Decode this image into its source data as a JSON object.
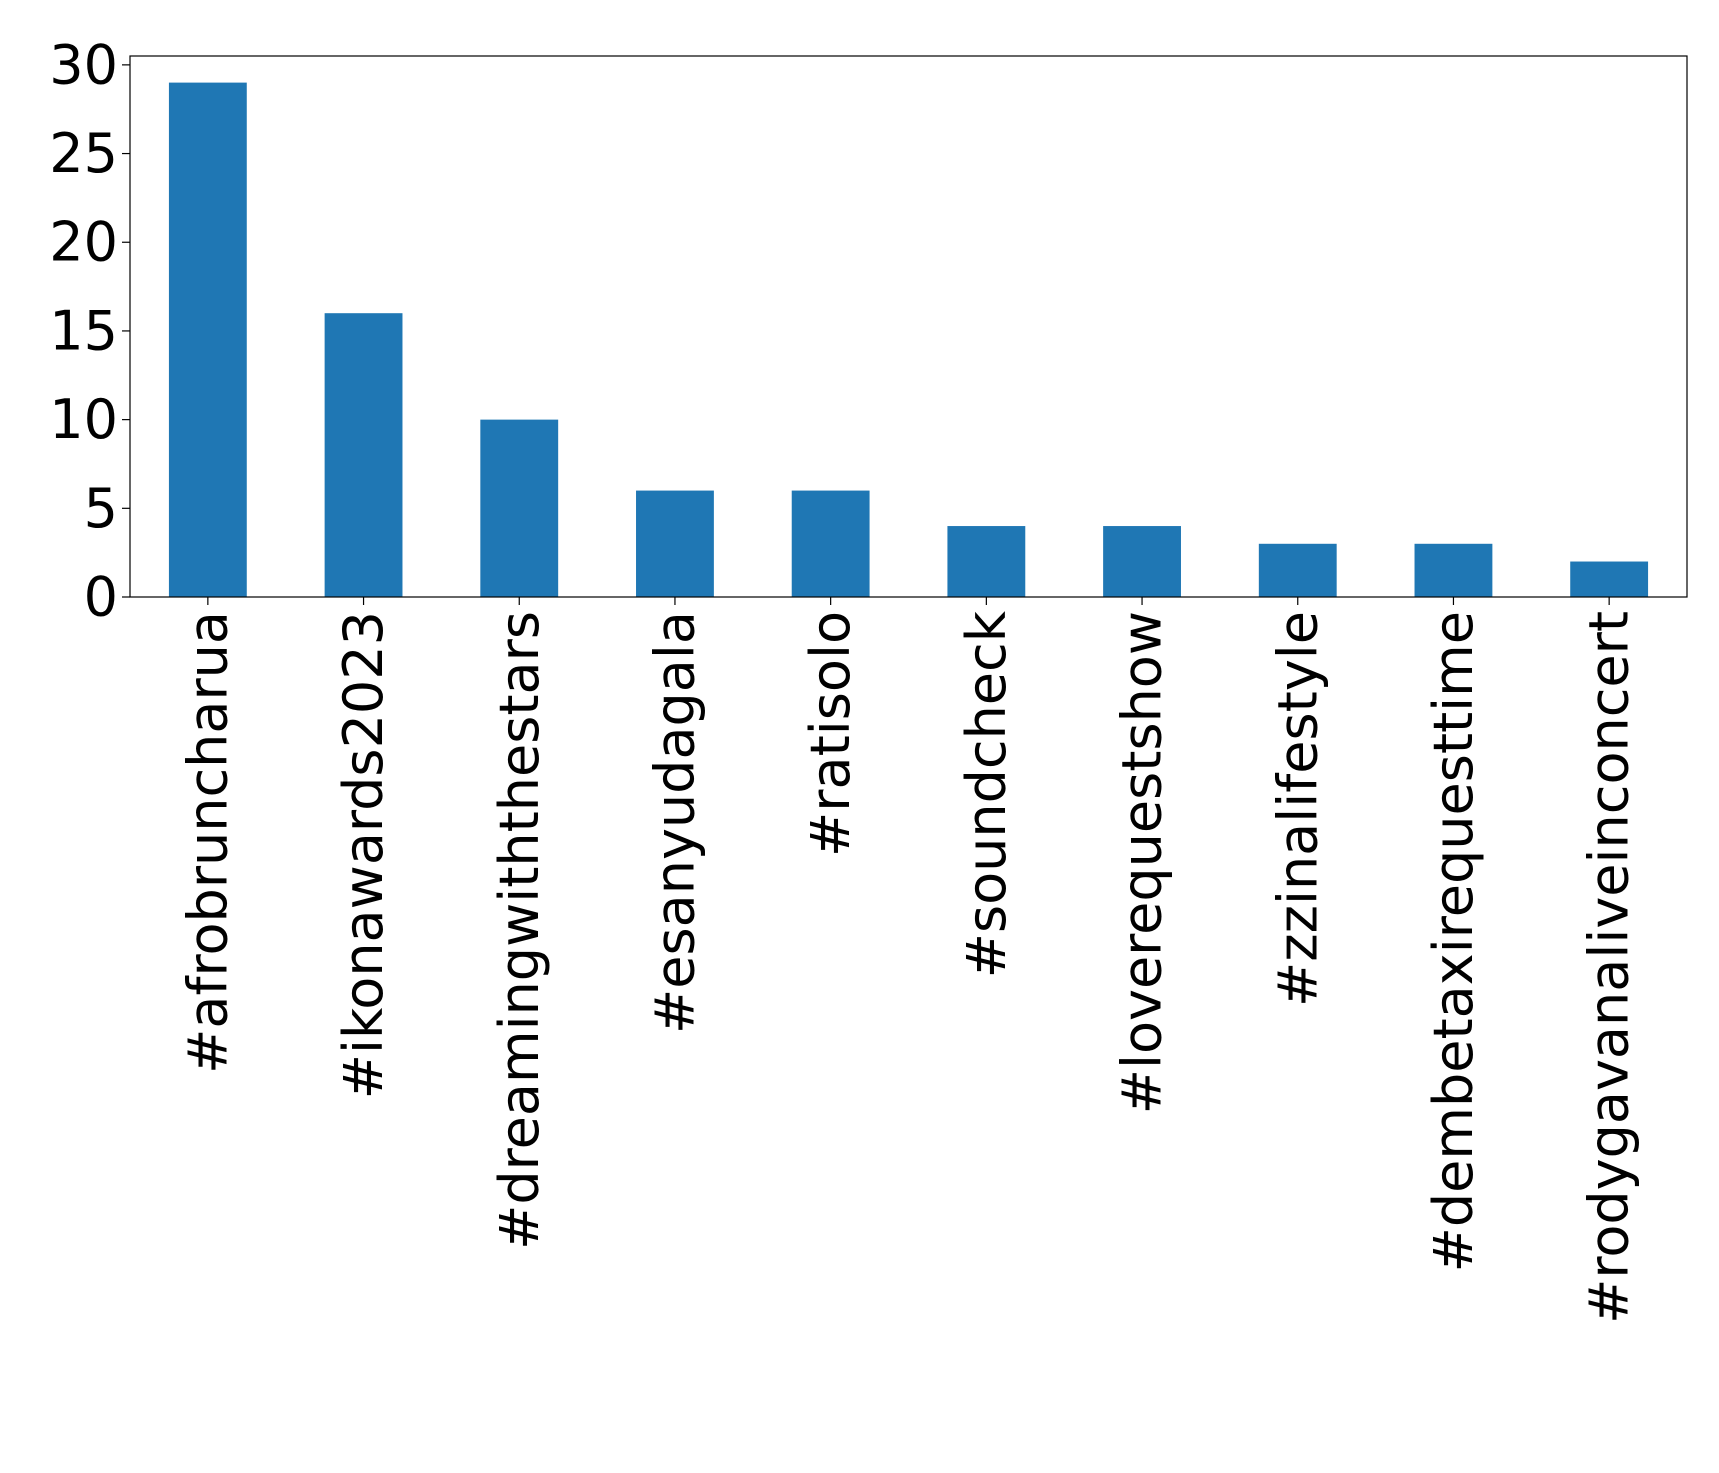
{
  "chart_data": {
    "type": "bar",
    "title": "",
    "xlabel": "",
    "ylabel": "",
    "categories": [
      "#afrobruncharua",
      "#ikonawards2023",
      "#dreamingwiththestars",
      "#esanyudagala",
      "#ratisolo",
      "#soundcheck",
      "#loverequestshow",
      "#zzinalifestyle",
      "#dembetaxirequesttime",
      "#rodygavanaliveinconcert"
    ],
    "values": [
      29,
      16,
      10,
      6,
      6,
      4,
      4,
      3,
      3,
      2
    ],
    "ylim": [
      0,
      30.5
    ],
    "yticks": [
      0,
      5,
      10,
      15,
      20,
      25,
      30
    ],
    "ytick_labels": [
      "0",
      "5",
      "10",
      "15",
      "20",
      "25",
      "30"
    ],
    "grid": false,
    "legend": "none",
    "bar_color": "#1f77b4"
  }
}
